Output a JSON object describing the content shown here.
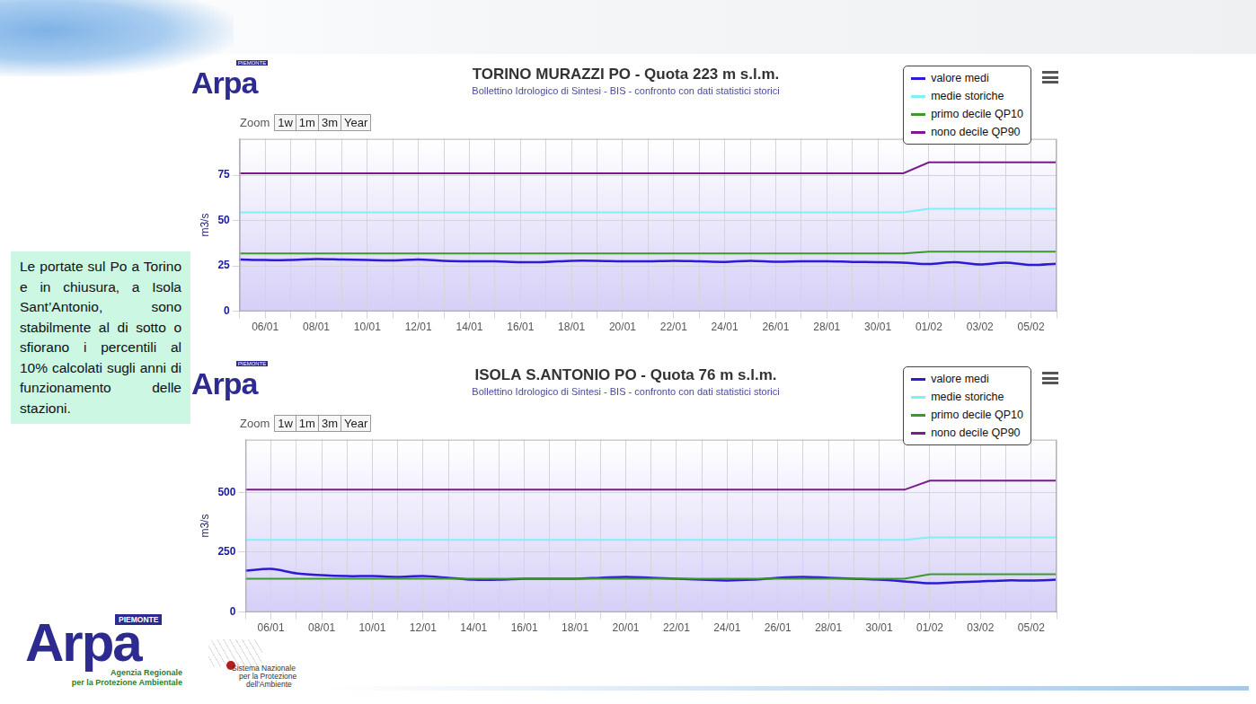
{
  "chart_data": [
    {
      "type": "line",
      "title": "TORINO MURAZZI PO - Quota 223 m s.l.m.",
      "subtitle": "Bollettino Idrologico di Sintesi - BIS - confronto con dati statistici storici",
      "zoom": {
        "label": "Zoom",
        "buttons": [
          "1w",
          "1m",
          "3m",
          "Year"
        ]
      },
      "y_label": "m3/s",
      "categories": [
        null,
        "06/01",
        null,
        "08/01",
        null,
        "10/01",
        null,
        "12/01",
        null,
        "14/01",
        null,
        "16/01",
        null,
        "18/01",
        null,
        "20/01",
        null,
        "22/01",
        null,
        "24/01",
        null,
        "26/01",
        null,
        "28/01",
        null,
        "30/01",
        null,
        "01/02",
        null,
        "03/02",
        null,
        "05/02",
        null
      ],
      "series": [
        {
          "name": "valore medi",
          "color": "#2b1ad6",
          "values": [
            28.5,
            28.2,
            28.3,
            28.8,
            28.5,
            28.2,
            28.0,
            28.5,
            27.8,
            27.5,
            27.5,
            27.0,
            27.2,
            27.8,
            27.8,
            27.5,
            27.5,
            27.8,
            27.5,
            27.2,
            27.8,
            27.3,
            27.5,
            27.5,
            27.2,
            27.0,
            26.8,
            26.0,
            27.0,
            25.8,
            26.8,
            25.5,
            26.2
          ]
        },
        {
          "name": "medie storiche",
          "color": "#7ff0f5",
          "values": [
            54.5,
            54.5,
            54.5,
            54.5,
            54.5,
            54.5,
            54.5,
            54.5,
            54.5,
            54.5,
            54.5,
            54.5,
            54.5,
            54.5,
            54.5,
            54.5,
            54.5,
            54.5,
            54.5,
            54.5,
            54.5,
            54.5,
            54.5,
            54.5,
            54.5,
            54.5,
            54.5,
            56.5,
            56.5,
            56.5,
            56.5,
            56.5,
            56.5
          ]
        },
        {
          "name": "primo decile QP10",
          "color": "#3a9a2a",
          "values": [
            31.8,
            31.8,
            31.8,
            31.8,
            31.8,
            31.8,
            31.8,
            31.8,
            31.8,
            31.8,
            31.8,
            31.8,
            31.8,
            31.8,
            31.8,
            31.8,
            31.8,
            31.8,
            31.8,
            31.8,
            31.8,
            31.8,
            31.8,
            31.8,
            31.8,
            31.8,
            31.8,
            32.8,
            32.8,
            32.8,
            32.8,
            32.8,
            32.8
          ]
        },
        {
          "name": "nono decile QP90",
          "color": "#7a1a8c",
          "values": [
            76,
            76,
            76,
            76,
            76,
            76,
            76,
            76,
            76,
            76,
            76,
            76,
            76,
            76,
            76,
            76,
            76,
            76,
            76,
            76,
            76,
            76,
            76,
            76,
            76,
            76,
            76,
            82,
            82,
            82,
            82,
            82,
            82
          ]
        }
      ],
      "ylim": [
        0,
        95
      ],
      "yticks": [
        0,
        25,
        50,
        75
      ],
      "grid": true,
      "legend": "top-right"
    },
    {
      "type": "line",
      "title": "ISOLA S.ANTONIO PO - Quota 76 m s.l.m.",
      "subtitle": "Bollettino Idrologico di Sintesi - BIS - confronto con dati statistici storici",
      "zoom": {
        "label": "Zoom",
        "buttons": [
          "1w",
          "1m",
          "3m",
          "Year"
        ]
      },
      "y_label": "m3/s",
      "categories": [
        null,
        "06/01",
        null,
        "08/01",
        null,
        "10/01",
        null,
        "12/01",
        null,
        "14/01",
        null,
        "16/01",
        null,
        "18/01",
        null,
        "20/01",
        null,
        "22/01",
        null,
        "24/01",
        null,
        "26/01",
        null,
        "28/01",
        null,
        "30/01",
        null,
        "01/02",
        null,
        "03/02",
        null,
        "05/02",
        null
      ],
      "series": [
        {
          "name": "valore medi",
          "color": "#2b1ad6",
          "values": [
            173,
            180,
            162,
            154,
            150,
            150,
            147,
            150,
            143,
            135,
            135,
            139,
            139,
            139,
            143,
            147,
            143,
            139,
            135,
            132,
            135,
            143,
            147,
            143,
            139,
            135,
            128,
            120,
            124,
            128,
            132,
            132,
            135
          ]
        },
        {
          "name": "medie storiche",
          "color": "#7ff0f5",
          "values": [
            301,
            301,
            301,
            301,
            301,
            301,
            301,
            301,
            301,
            301,
            301,
            301,
            301,
            301,
            301,
            301,
            301,
            301,
            301,
            301,
            301,
            301,
            301,
            301,
            301,
            301,
            301,
            312,
            312,
            312,
            312,
            312,
            312
          ]
        },
        {
          "name": "primo decile QP10",
          "color": "#3a9a2a",
          "values": [
            139,
            139,
            139,
            139,
            139,
            139,
            139,
            139,
            139,
            139,
            139,
            139,
            139,
            139,
            139,
            139,
            139,
            139,
            139,
            139,
            139,
            139,
            139,
            139,
            139,
            139,
            139,
            158,
            158,
            158,
            158,
            158,
            158
          ]
        },
        {
          "name": "nono decile QP90",
          "color": "#7a1a8c",
          "values": [
            511,
            511,
            511,
            511,
            511,
            511,
            511,
            511,
            511,
            511,
            511,
            511,
            511,
            511,
            511,
            511,
            511,
            511,
            511,
            511,
            511,
            511,
            511,
            511,
            511,
            511,
            511,
            549,
            549,
            549,
            549,
            549,
            549
          ]
        }
      ],
      "ylim": [
        0,
        720
      ],
      "yticks": [
        0,
        250,
        500
      ],
      "grid": true,
      "legend": "top-right"
    }
  ],
  "note": "Le portate sul Po a Torino e in chiusura, a Isola Sant’Antonio, sono stabilmente al di sotto o sfiorano i percentili al 10% calcolati sugli anni di funzionamento delle stazioni.",
  "logos": {
    "arpa": "Arpa",
    "region": "PIEMONTE",
    "agency": [
      "Agenzia Regionale",
      "per la Protezione Ambientale"
    ],
    "snpa": [
      "Sistema Nazionale",
      "per la Protezione",
      "dell'Ambiente"
    ]
  }
}
